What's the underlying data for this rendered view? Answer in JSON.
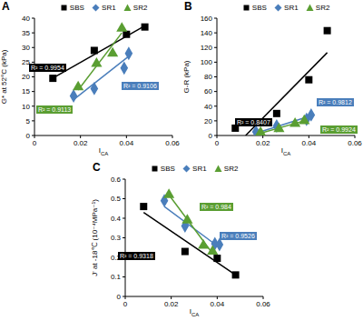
{
  "chart_data": [
    {
      "type": "scatter",
      "title": "A",
      "x_label": "ICA",
      "y_label": "G* at 52°C (kPa)",
      "xlim": [
        0,
        0.06
      ],
      "xticks": [
        0,
        0.02,
        0.04,
        0.06
      ],
      "ylim": [
        0,
        40
      ],
      "yticks": [
        0,
        5,
        10,
        15,
        20,
        25,
        30,
        35,
        40
      ],
      "legend": "top",
      "series": [
        {
          "name": "SBS",
          "color": "#000000",
          "marker": "square",
          "x": [
            0.008,
            0.026,
            0.04,
            0.048
          ],
          "values": [
            19.5,
            29,
            34.5,
            37
          ],
          "trend": {
            "x": [
              0.008,
              0.048
            ],
            "values": [
              19.6,
              37.4
            ]
          },
          "annotation": "R² = 0.9954"
        },
        {
          "name": "SR1",
          "color": "#4a7ebb",
          "marker": "diamond",
          "x": [
            0.017,
            0.026,
            0.039,
            0.041
          ],
          "values": [
            13.5,
            16,
            23,
            28
          ],
          "trend": {
            "x": [
              0.017,
              0.041
            ],
            "values": [
              12.2,
              27
            ]
          },
          "annotation": "R² = 0.9106"
        },
        {
          "name": "SR2",
          "color": "#5a9e32",
          "marker": "triangle",
          "x": [
            0.019,
            0.027,
            0.034,
            0.038
          ],
          "values": [
            16.5,
            24.5,
            28,
            36.5
          ],
          "trend": {
            "x": [
              0.019,
              0.038
            ],
            "values": [
              15.5,
              35
            ]
          },
          "annotation": "R² = 0.9113"
        }
      ]
    },
    {
      "type": "scatter",
      "title": "B",
      "x_label": "ICA",
      "y_label": "G-R (kPa)",
      "xlim": [
        0,
        0.06
      ],
      "xticks": [
        0,
        0.02,
        0.04,
        0.06
      ],
      "ylim": [
        0,
        160
      ],
      "yticks": [
        0,
        20,
        40,
        60,
        80,
        100,
        120,
        140,
        160
      ],
      "legend": "top",
      "series": [
        {
          "name": "SBS",
          "color": "#000000",
          "marker": "square",
          "x": [
            0.008,
            0.026,
            0.04,
            0.048
          ],
          "values": [
            10,
            30,
            76,
            143
          ],
          "trend": {
            "x": [
              0.0125,
              0.048
            ],
            "values": [
              0,
              113
            ]
          },
          "annotation": "R² = 0.8407"
        },
        {
          "name": "SR1",
          "color": "#4a7ebb",
          "marker": "diamond",
          "x": [
            0.017,
            0.026,
            0.039,
            0.041
          ],
          "values": [
            5,
            13,
            22,
            28
          ],
          "trend": {
            "x": [
              0.017,
              0.041
            ],
            "values": [
              3,
              27
            ]
          },
          "annotation": "R² = 0.9812"
        },
        {
          "name": "SR2",
          "color": "#5a9e32",
          "marker": "triangle",
          "x": [
            0.019,
            0.027,
            0.034,
            0.038
          ],
          "values": [
            4,
            9,
            16,
            20
          ],
          "trend": {
            "x": [
              0.019,
              0.038
            ],
            "values": [
              3,
              20
            ]
          },
          "annotation": "R² = 0.9924"
        }
      ]
    },
    {
      "type": "scatter",
      "title": "C",
      "x_label": "ICA",
      "y_label": "J' at -18℃ (10⁻⁴MPa⁻¹)",
      "xlim": [
        0,
        0.06
      ],
      "xticks": [
        0,
        0.02,
        0.04,
        0.06
      ],
      "ylim": [
        0,
        0.6
      ],
      "yticks": [
        0,
        0.1,
        0.2,
        0.3,
        0.4,
        0.5,
        0.6
      ],
      "legend": "top",
      "series": [
        {
          "name": "SBS",
          "color": "#000000",
          "marker": "square",
          "x": [
            0.008,
            0.026,
            0.04,
            0.048
          ],
          "values": [
            0.46,
            0.23,
            0.195,
            0.11
          ],
          "trend": {
            "x": [
              0.008,
              0.048
            ],
            "values": [
              0.43,
              0.11
            ]
          },
          "annotation": "R² = 0.9318"
        },
        {
          "name": "SR1",
          "color": "#4a7ebb",
          "marker": "diamond",
          "x": [
            0.017,
            0.026,
            0.039,
            0.041
          ],
          "values": [
            0.49,
            0.36,
            0.27,
            0.265
          ],
          "trend": {
            "x": [
              0.017,
              0.041
            ],
            "values": [
              0.46,
              0.25
            ]
          },
          "annotation": "R² = 0.9526"
        },
        {
          "name": "SR2",
          "color": "#5a9e32",
          "marker": "triangle",
          "x": [
            0.019,
            0.027,
            0.034,
            0.038
          ],
          "values": [
            0.52,
            0.39,
            0.26,
            0.23
          ],
          "trend": {
            "x": [
              0.019,
              0.038
            ],
            "values": [
              0.52,
              0.22
            ]
          },
          "annotation": "R² = 0.984"
        }
      ]
    }
  ]
}
